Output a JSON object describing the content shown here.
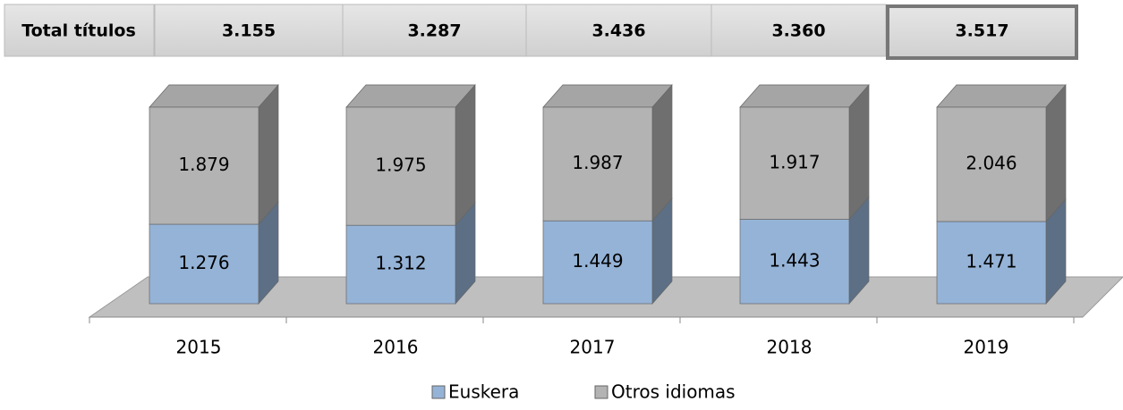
{
  "table": {
    "header": "Total títulos",
    "cells": [
      "3.155",
      "3.287",
      "3.436",
      "3.360",
      "3.517"
    ]
  },
  "chart_data": {
    "type": "bar",
    "stacking": "percent",
    "three_d": true,
    "categories": [
      "2015",
      "2016",
      "2017",
      "2018",
      "2019"
    ],
    "series": [
      {
        "name": "Euskera",
        "color": "#95b3d7",
        "values": [
          1276,
          1312,
          1449,
          1443,
          1471
        ],
        "value_labels": [
          "1.276",
          "1.312",
          "1.449",
          "1.443",
          "1.471"
        ]
      },
      {
        "name": "Otros idiomas",
        "color": "#b3b3b3",
        "values": [
          1879,
          1975,
          1987,
          1917,
          2046
        ],
        "value_labels": [
          "1.879",
          "1.975",
          "1.987",
          "1.917",
          "2.046"
        ]
      }
    ],
    "legend": "bottom"
  }
}
